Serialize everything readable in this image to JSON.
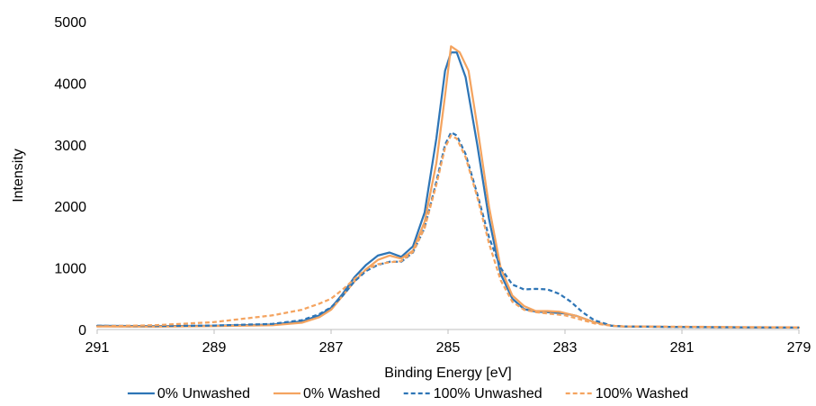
{
  "chart_data": {
    "type": "line",
    "title": "",
    "xlabel": "Binding Energy [eV]",
    "ylabel": "Intensity",
    "xlim": [
      291,
      279
    ],
    "x_reversed": true,
    "ylim": [
      0,
      5000
    ],
    "xticks": [
      291,
      289,
      287,
      285,
      283,
      281,
      279
    ],
    "yticks": [
      0,
      1000,
      2000,
      3000,
      4000,
      5000
    ],
    "grid": false,
    "legend_position": "bottom",
    "series": [
      {
        "name": "0% Unwashed",
        "color": "#2E75B6",
        "dash": "solid",
        "points": [
          [
            291,
            60
          ],
          [
            290,
            55
          ],
          [
            289,
            60
          ],
          [
            288,
            80
          ],
          [
            287.5,
            130
          ],
          [
            287.2,
            230
          ],
          [
            287,
            350
          ],
          [
            286.8,
            580
          ],
          [
            286.6,
            850
          ],
          [
            286.4,
            1050
          ],
          [
            286.2,
            1200
          ],
          [
            286,
            1250
          ],
          [
            285.8,
            1180
          ],
          [
            285.6,
            1350
          ],
          [
            285.4,
            1900
          ],
          [
            285.2,
            3100
          ],
          [
            285.05,
            4200
          ],
          [
            284.95,
            4500
          ],
          [
            284.85,
            4500
          ],
          [
            284.7,
            4100
          ],
          [
            284.5,
            3000
          ],
          [
            284.3,
            1800
          ],
          [
            284.1,
            900
          ],
          [
            283.9,
            500
          ],
          [
            283.7,
            330
          ],
          [
            283.5,
            290
          ],
          [
            283.3,
            280
          ],
          [
            283,
            260
          ],
          [
            282.8,
            220
          ],
          [
            282.5,
            120
          ],
          [
            282.2,
            60
          ],
          [
            282,
            50
          ],
          [
            281,
            40
          ],
          [
            280,
            35
          ],
          [
            279,
            30
          ]
        ]
      },
      {
        "name": "0% Washed",
        "color": "#F4A460",
        "dash": "solid",
        "points": [
          [
            291,
            50
          ],
          [
            290,
            45
          ],
          [
            289,
            55
          ],
          [
            288,
            70
          ],
          [
            287.5,
            110
          ],
          [
            287.2,
            200
          ],
          [
            287,
            320
          ],
          [
            286.8,
            550
          ],
          [
            286.6,
            780
          ],
          [
            286.4,
            980
          ],
          [
            286.2,
            1130
          ],
          [
            286,
            1200
          ],
          [
            285.8,
            1150
          ],
          [
            285.6,
            1280
          ],
          [
            285.4,
            1750
          ],
          [
            285.2,
            2700
          ],
          [
            285.05,
            3800
          ],
          [
            284.95,
            4600
          ],
          [
            284.8,
            4500
          ],
          [
            284.65,
            4200
          ],
          [
            284.5,
            3300
          ],
          [
            284.3,
            2000
          ],
          [
            284.1,
            1000
          ],
          [
            283.9,
            550
          ],
          [
            283.7,
            380
          ],
          [
            283.5,
            300
          ],
          [
            283.3,
            300
          ],
          [
            283.1,
            290
          ],
          [
            282.8,
            220
          ],
          [
            282.5,
            120
          ],
          [
            282.2,
            60
          ],
          [
            282,
            50
          ],
          [
            281,
            40
          ],
          [
            280,
            35
          ],
          [
            279,
            30
          ]
        ]
      },
      {
        "name": "100% Unwashed",
        "color": "#2E75B6",
        "dash": "dashed",
        "points": [
          [
            291,
            60
          ],
          [
            290,
            55
          ],
          [
            289,
            65
          ],
          [
            288,
            90
          ],
          [
            287.5,
            150
          ],
          [
            287.2,
            250
          ],
          [
            287,
            360
          ],
          [
            286.8,
            550
          ],
          [
            286.6,
            780
          ],
          [
            286.4,
            950
          ],
          [
            286.2,
            1050
          ],
          [
            286,
            1100
          ],
          [
            285.8,
            1100
          ],
          [
            285.6,
            1250
          ],
          [
            285.4,
            1650
          ],
          [
            285.2,
            2400
          ],
          [
            285.05,
            3000
          ],
          [
            284.95,
            3200
          ],
          [
            284.85,
            3150
          ],
          [
            284.7,
            2850
          ],
          [
            284.5,
            2200
          ],
          [
            284.3,
            1500
          ],
          [
            284.1,
            1000
          ],
          [
            283.9,
            730
          ],
          [
            283.7,
            650
          ],
          [
            283.5,
            660
          ],
          [
            283.3,
            650
          ],
          [
            283.1,
            580
          ],
          [
            282.9,
            450
          ],
          [
            282.7,
            280
          ],
          [
            282.5,
            150
          ],
          [
            282.2,
            60
          ],
          [
            282,
            50
          ],
          [
            281,
            40
          ],
          [
            280,
            35
          ],
          [
            279,
            30
          ]
        ]
      },
      {
        "name": "100% Washed",
        "color": "#F4A460",
        "dash": "dashed",
        "points": [
          [
            291,
            50
          ],
          [
            290,
            70
          ],
          [
            289,
            120
          ],
          [
            288,
            230
          ],
          [
            287.5,
            320
          ],
          [
            287.2,
            420
          ],
          [
            287,
            500
          ],
          [
            286.8,
            650
          ],
          [
            286.6,
            820
          ],
          [
            286.4,
            980
          ],
          [
            286.2,
            1060
          ],
          [
            286,
            1090
          ],
          [
            285.8,
            1110
          ],
          [
            285.6,
            1260
          ],
          [
            285.4,
            1650
          ],
          [
            285.2,
            2350
          ],
          [
            285.05,
            2950
          ],
          [
            284.95,
            3150
          ],
          [
            284.85,
            3100
          ],
          [
            284.7,
            2800
          ],
          [
            284.5,
            2150
          ],
          [
            284.3,
            1400
          ],
          [
            284.1,
            800
          ],
          [
            283.9,
            450
          ],
          [
            283.7,
            320
          ],
          [
            283.5,
            280
          ],
          [
            283.3,
            260
          ],
          [
            283,
            230
          ],
          [
            282.8,
            180
          ],
          [
            282.5,
            100
          ],
          [
            282.2,
            60
          ],
          [
            282,
            50
          ],
          [
            281,
            45
          ],
          [
            280,
            40
          ],
          [
            279,
            35
          ]
        ]
      }
    ]
  }
}
